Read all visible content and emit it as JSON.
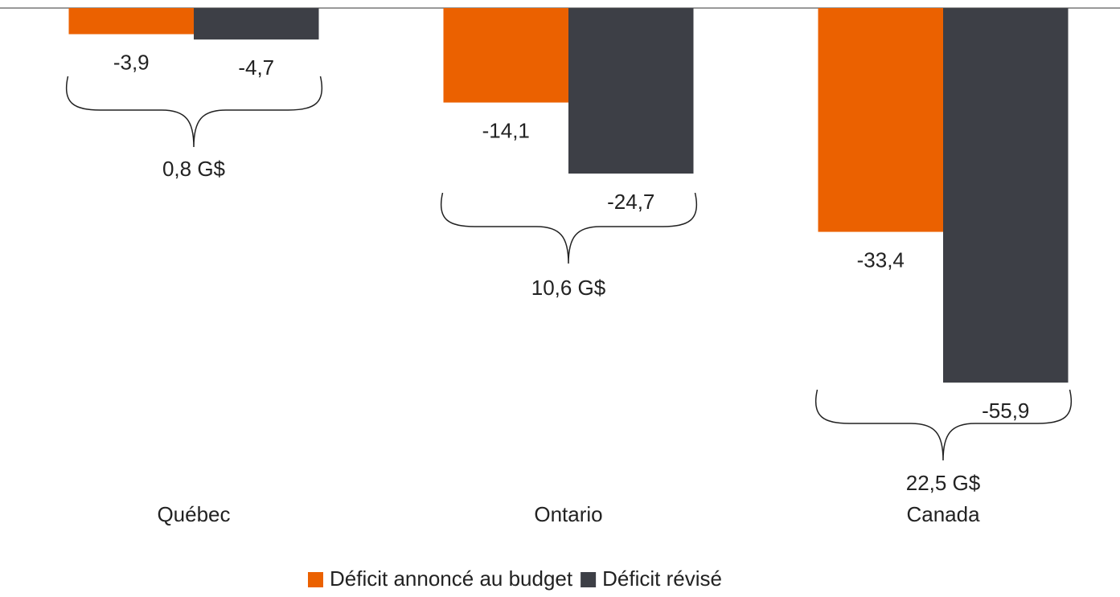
{
  "chart_data": {
    "type": "bar",
    "categories": [
      "Québec",
      "Ontario",
      "Canada"
    ],
    "series": [
      {
        "name": "Déficit annoncé au budget",
        "color": "#eb6100",
        "values": [
          -3.9,
          -14.1,
          -33.4
        ],
        "value_labels": [
          "-3,9",
          "-14,1",
          "-33,4"
        ]
      },
      {
        "name": "Déficit révisé",
        "color": "#3d3f46",
        "values": [
          -4.7,
          -24.7,
          -55.9
        ],
        "value_labels": [
          "-4,7",
          "-24,7",
          "-55,9"
        ]
      }
    ],
    "annotations": [
      "0,8 G$",
      "10,6 G$",
      "22,5 G$"
    ],
    "ylim": [
      -60,
      0
    ],
    "legend": "bottom"
  }
}
